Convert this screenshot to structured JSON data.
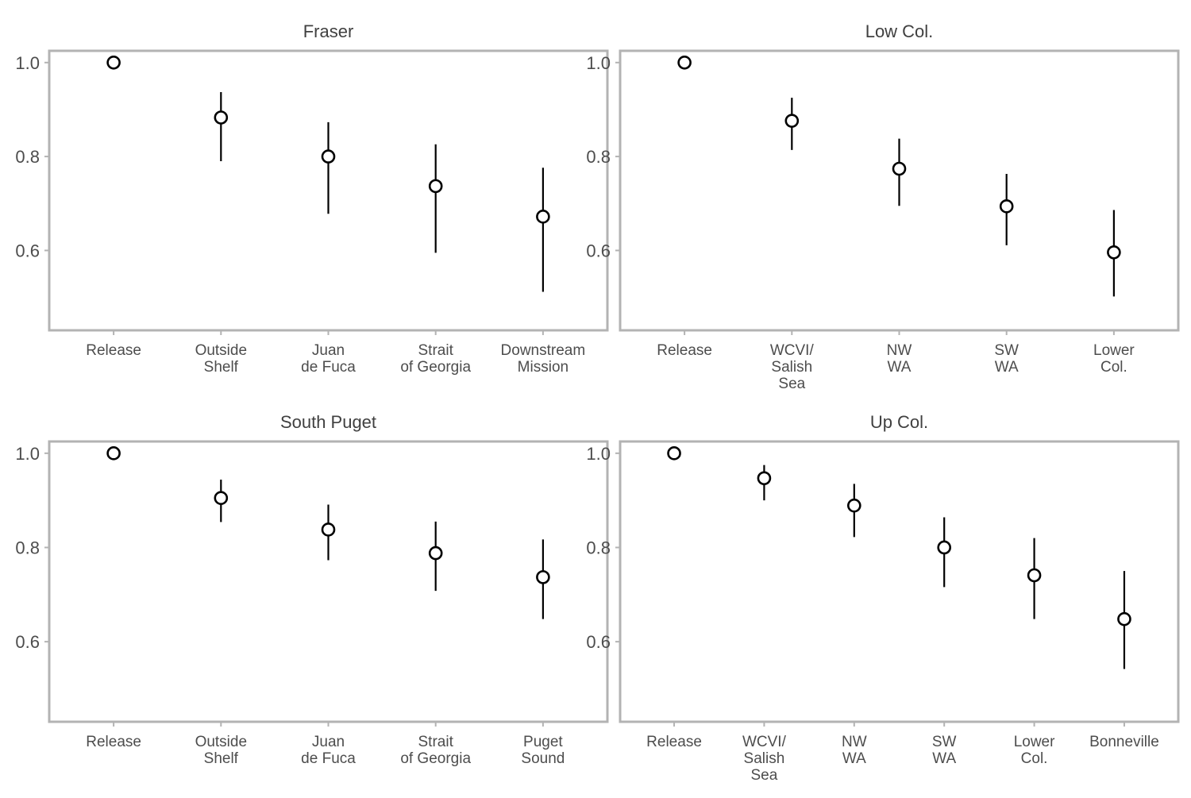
{
  "chart_data": [
    {
      "type": "scatter",
      "title": "Fraser",
      "categories": [
        "Release",
        "Outside\nShelf",
        "Juan\nde Fuca",
        "Strait\nof Georgia",
        "Downstream\nMission"
      ],
      "values": [
        1.0,
        0.883,
        0.8,
        0.737,
        0.672
      ],
      "lower": [
        1.0,
        0.79,
        0.678,
        0.595,
        0.512
      ],
      "upper": [
        1.0,
        0.937,
        0.873,
        0.826,
        0.776
      ],
      "yticks": [
        0.6,
        0.8,
        1.0
      ],
      "ytick_labels": [
        "0.6",
        "0.8",
        "1.0"
      ],
      "ylim": [
        0.43,
        1.025
      ]
    },
    {
      "type": "scatter",
      "title": "Low Col.",
      "categories": [
        "Release",
        "WCVI/\nSalish\nSea",
        "NW\nWA",
        "SW\nWA",
        "Lower\nCol."
      ],
      "values": [
        1.0,
        0.876,
        0.774,
        0.694,
        0.596
      ],
      "lower": [
        1.0,
        0.814,
        0.695,
        0.611,
        0.502
      ],
      "upper": [
        1.0,
        0.925,
        0.838,
        0.763,
        0.686
      ],
      "yticks": [
        0.6,
        0.8,
        1.0
      ],
      "ytick_labels": [
        "0.6",
        "0.8",
        "1.0"
      ],
      "ylim": [
        0.43,
        1.025
      ]
    },
    {
      "type": "scatter",
      "title": "South Puget",
      "categories": [
        "Release",
        "Outside\nShelf",
        "Juan\nde Fuca",
        "Strait\nof Georgia",
        "Puget\nSound"
      ],
      "values": [
        1.0,
        0.905,
        0.838,
        0.788,
        0.737
      ],
      "lower": [
        1.0,
        0.854,
        0.773,
        0.708,
        0.648
      ],
      "upper": [
        1.0,
        0.944,
        0.891,
        0.855,
        0.817
      ],
      "yticks": [
        0.6,
        0.8,
        1.0
      ],
      "ytick_labels": [
        "0.6",
        "0.8",
        "1.0"
      ],
      "ylim": [
        0.43,
        1.025
      ]
    },
    {
      "type": "scatter",
      "title": "Up Col.",
      "categories": [
        "Release",
        "WCVI/\nSalish\nSea",
        "NW\nWA",
        "SW\nWA",
        "Lower\nCol.",
        "Bonneville"
      ],
      "values": [
        1.0,
        0.947,
        0.889,
        0.8,
        0.741,
        0.648
      ],
      "lower": [
        1.0,
        0.9,
        0.822,
        0.716,
        0.648,
        0.542
      ],
      "upper": [
        1.0,
        0.975,
        0.935,
        0.864,
        0.82,
        0.75
      ],
      "yticks": [
        0.6,
        0.8,
        1.0
      ],
      "ytick_labels": [
        "0.6",
        "0.8",
        "1.0"
      ],
      "ylim": [
        0.43,
        1.025
      ]
    }
  ],
  "colors": {
    "panel_border": "#b3b3b3",
    "tick_text": "#4d4d4d",
    "title_text": "#404040",
    "point_stroke": "#000000",
    "point_fill": "#ffffff",
    "errorbar": "#000000"
  }
}
